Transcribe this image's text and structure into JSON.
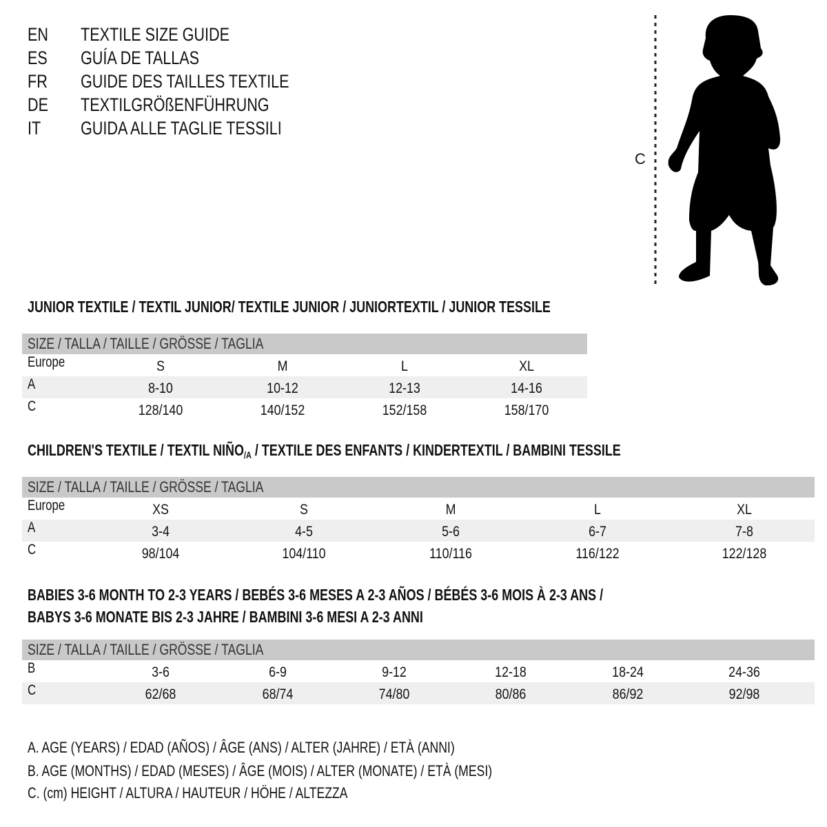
{
  "titles": [
    {
      "code": "EN",
      "text": "TEXTILE SIZE GUIDE"
    },
    {
      "code": "ES",
      "text": "GUÍA DE TALLAS"
    },
    {
      "code": "FR",
      "text": "GUIDE DES TAILLES TEXTILE"
    },
    {
      "code": "DE",
      "text": "TEXTILGRÖßENFÜHRUNG"
    },
    {
      "code": "IT",
      "text": "GUIDA ALLE TAGLIE TESSILI"
    }
  ],
  "figure": {
    "measure_label": "C"
  },
  "sections": [
    {
      "title": "JUNIOR TEXTILE / TEXTIL JUNIOR/ TEXTILE JUNIOR / JUNIORTEXTIL / JUNIOR TESSILE",
      "header": "SIZE / TALLA / TAILLE / GRÖSSE / TAGLIA",
      "rows": [
        {
          "label": "Europe",
          "values": [
            "S",
            "M",
            "L",
            "XL"
          ]
        },
        {
          "label": "A",
          "values": [
            "8-10",
            "10-12",
            "12-13",
            "14-16"
          ]
        },
        {
          "label": "C",
          "values": [
            "128/140",
            "140/152",
            "152/158",
            "158/170"
          ]
        }
      ]
    },
    {
      "title_pre": "CHILDREN'S TEXTILE / TEXTIL NIÑO",
      "title_sub": "/A",
      "title_post": " / TEXTILE DES ENFANTS / KINDERTEXTIL / BAMBINI TESSILE",
      "header": "SIZE / TALLA / TAILLE / GRÖSSE / TAGLIA",
      "rows": [
        {
          "label": "Europe",
          "values": [
            "XS",
            "S",
            "M",
            "L",
            "XL"
          ]
        },
        {
          "label": "A",
          "values": [
            "3-4",
            "4-5",
            "5-6",
            "6-7",
            "7-8"
          ]
        },
        {
          "label": "C",
          "values": [
            "98/104",
            "104/110",
            "110/116",
            "116/122",
            "122/128"
          ]
        }
      ]
    },
    {
      "title": "BABIES 3-6 MONTH TO 2-3 YEARS / BEBÉS 3-6 MESES A 2-3 AÑOS / BÉBÉS 3-6 MOIS À 2-3 ANS /",
      "title2": "BABYS 3-6 MONATE BIS 2-3 JAHRE / BAMBINI 3-6 MESI A 2-3 ANNI",
      "header": "SIZE / TALLA / TAILLE / GRÖSSE / TAGLIA",
      "rows": [
        {
          "label": "B",
          "values": [
            "3-6",
            "6-9",
            "9-12",
            "12-18",
            "18-24",
            "24-36"
          ]
        },
        {
          "label": "C",
          "values": [
            "62/68",
            "68/74",
            "74/80",
            "80/86",
            "86/92",
            "92/98"
          ]
        }
      ]
    }
  ],
  "legend": [
    "A. AGE (YEARS) / EDAD (AÑOS) / ÂGE (ANS) / ALTER (JAHRE) / ETÀ (ANNI)",
    "B. AGE (MONTHS) / EDAD (MESES) / ÂGE (MOIS) / ALTER (MONATE) / ETÀ (MESI)",
    "C. (cm) HEIGHT / ALTURA / HAUTEUR / HÖHE / ALTEZZA"
  ],
  "colors": {
    "header_bar": "#c9c9c9",
    "row_shade": "#efefef",
    "text": "#111111"
  }
}
